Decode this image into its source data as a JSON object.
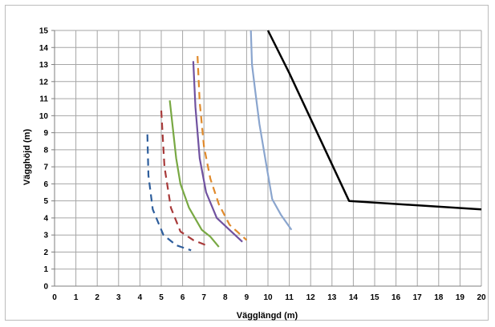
{
  "chart_data": {
    "type": "line",
    "title": "",
    "xlabel": "Vägglängd  (m)",
    "ylabel": "Vägghöjd  (m)",
    "xlim": [
      0,
      20
    ],
    "ylim": [
      0,
      15
    ],
    "xticks": [
      "0",
      "1",
      "2",
      "3",
      "4",
      "5",
      "6",
      "7",
      "8",
      "9",
      "10",
      "11",
      "12",
      "13",
      "14",
      "15",
      "16",
      "17",
      "18",
      "19",
      "20"
    ],
    "yticks": [
      "0",
      "1",
      "2",
      "3",
      "4",
      "5",
      "6",
      "7",
      "8",
      "9",
      "10",
      "11",
      "12",
      "13",
      "14",
      "15"
    ],
    "grid": true,
    "legend": "none",
    "series": [
      {
        "color": "#2e5e9c",
        "dash": "dashed",
        "points": [
          [
            4.35,
            8.9
          ],
          [
            4.4,
            6.5
          ],
          [
            4.6,
            4.5
          ],
          [
            5.1,
            3.0
          ],
          [
            5.7,
            2.4
          ],
          [
            6.4,
            2.1
          ]
        ]
      },
      {
        "color": "#a83a3a",
        "dash": "dashed",
        "points": [
          [
            5.0,
            10.3
          ],
          [
            5.15,
            7.0
          ],
          [
            5.45,
            4.6
          ],
          [
            5.9,
            3.2
          ],
          [
            6.5,
            2.7
          ],
          [
            7.1,
            2.4
          ]
        ]
      },
      {
        "color": "#78a843",
        "dash": "solid",
        "points": [
          [
            5.4,
            10.9
          ],
          [
            5.7,
            7.5
          ],
          [
            5.9,
            6.0
          ],
          [
            6.3,
            4.6
          ],
          [
            6.9,
            3.3
          ],
          [
            7.3,
            2.9
          ],
          [
            7.7,
            2.3
          ]
        ]
      },
      {
        "color": "#7052a0",
        "dash": "solid",
        "points": [
          [
            6.5,
            13.2
          ],
          [
            6.6,
            10.5
          ],
          [
            6.8,
            7.5
          ],
          [
            7.1,
            5.5
          ],
          [
            7.6,
            4.0
          ],
          [
            8.2,
            3.3
          ],
          [
            8.8,
            2.6
          ]
        ]
      },
      {
        "color": "#e08a2c",
        "dash": "dashed",
        "points": [
          [
            6.7,
            13.5
          ],
          [
            6.8,
            10.8
          ],
          [
            7.0,
            8.2
          ],
          [
            7.3,
            6.3
          ],
          [
            7.7,
            4.8
          ],
          [
            8.2,
            3.6
          ],
          [
            9.0,
            2.7
          ]
        ]
      },
      {
        "color": "#8aa5ce",
        "dash": "solid",
        "points": [
          [
            9.2,
            15.0
          ],
          [
            9.25,
            13.0
          ],
          [
            9.4,
            11.5
          ],
          [
            9.6,
            9.5
          ],
          [
            9.9,
            7.3
          ],
          [
            10.2,
            5.1
          ],
          [
            10.6,
            4.2
          ],
          [
            11.1,
            3.3
          ]
        ]
      },
      {
        "color": "#000000",
        "dash": "solid",
        "points": [
          [
            10.0,
            15.0
          ],
          [
            11.0,
            12.5
          ],
          [
            13.8,
            5.0
          ],
          [
            20.0,
            4.5
          ]
        ]
      }
    ]
  }
}
